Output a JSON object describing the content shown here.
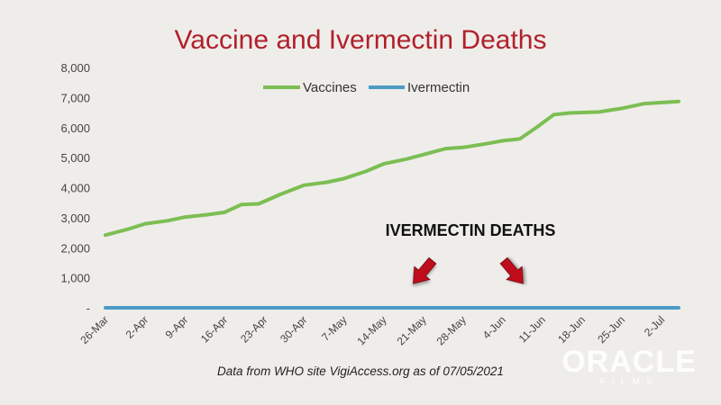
{
  "colors": {
    "title": "#b0212b",
    "vaccines": "#7cbe53",
    "ivermectin": "#4b9bc5",
    "arrow": "#c00f1f",
    "background": "#efedea"
  },
  "annotation": {
    "text": "IVERMECTIN DEATHS"
  },
  "source": "Data from WHO site VigiAccess.org as of 07/05/2021",
  "logo": {
    "main": "ORACLE",
    "sub": "FILMS"
  },
  "chart_data": {
    "type": "line",
    "title": "Vaccine and Ivermectin Deaths",
    "xlabel": "",
    "ylabel": "",
    "ylim": [
      0,
      8000
    ],
    "yticks": [
      {
        "value": 0,
        "label": "-"
      },
      {
        "value": 1000,
        "label": "1,000"
      },
      {
        "value": 2000,
        "label": "2,000"
      },
      {
        "value": 3000,
        "label": "3,000"
      },
      {
        "value": 4000,
        "label": "4,000"
      },
      {
        "value": 5000,
        "label": "5,000"
      },
      {
        "value": 6000,
        "label": "6,000"
      },
      {
        "value": 7000,
        "label": "7,000"
      },
      {
        "value": 8000,
        "label": "8,000"
      }
    ],
    "xtick_labels": [
      "26-Mar",
      "2-Apr",
      "9-Apr",
      "16-Apr",
      "23-Apr",
      "30-Apr",
      "7-May",
      "14-May",
      "21-May",
      "28-May",
      "4-Jun",
      "11-Jun",
      "18-Jun",
      "25-Jun",
      "2-Jul"
    ],
    "x_range": [
      "2021-03-26",
      "2021-07-05"
    ],
    "grid": false,
    "legend": "top",
    "series": [
      {
        "name": "Vaccines",
        "color": "#7cbe53",
        "x": [
          "2021-03-26",
          "2021-03-30",
          "2021-04-02",
          "2021-04-06",
          "2021-04-09",
          "2021-04-13",
          "2021-04-16",
          "2021-04-19",
          "2021-04-22",
          "2021-04-26",
          "2021-04-30",
          "2021-05-04",
          "2021-05-07",
          "2021-05-11",
          "2021-05-14",
          "2021-05-18",
          "2021-05-21",
          "2021-05-25",
          "2021-05-28",
          "2021-06-01",
          "2021-06-04",
          "2021-06-07",
          "2021-06-10",
          "2021-06-13",
          "2021-06-16",
          "2021-06-21",
          "2021-06-25",
          "2021-06-29",
          "2021-07-05"
        ],
        "y": [
          2420,
          2620,
          2800,
          2900,
          3020,
          3100,
          3180,
          3440,
          3460,
          3790,
          4080,
          4180,
          4300,
          4550,
          4790,
          4950,
          5100,
          5300,
          5340,
          5460,
          5560,
          5620,
          6010,
          6430,
          6490,
          6520,
          6640,
          6800,
          6870
        ]
      },
      {
        "name": "Ivermectin",
        "color": "#4b9bc5",
        "x": [
          "2021-03-26",
          "2021-07-05"
        ],
        "y": [
          0,
          0
        ]
      }
    ]
  }
}
